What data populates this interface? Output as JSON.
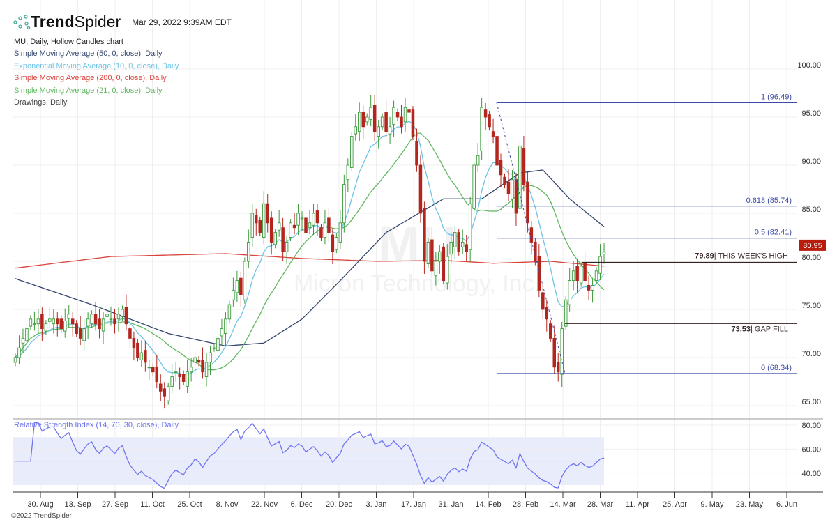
{
  "header": {
    "brand_part1": "Trend",
    "brand_part2": "Spider",
    "timestamp": "Mar 29, 2022 9:39AM EDT"
  },
  "legend": {
    "chart_title": "MU, Daily, Hollow Candles chart",
    "items": [
      {
        "label": "Simple Moving Average (50, 0, close), Daily",
        "color": "#34466e"
      },
      {
        "label": "Exponential Moving Average (10, 0, close), Daily",
        "color": "#6cc3e6"
      },
      {
        "label": "Simple Moving Average (200, 0, close), Daily",
        "color": "#d9453d"
      },
      {
        "label": "Simple Moving Average (21, 0, close), Daily",
        "color": "#5fb85f"
      },
      {
        "label": "Drawings, Daily",
        "color": "#333333"
      }
    ]
  },
  "footer": {
    "copyright": "©2022 TrendSpider"
  },
  "chart_data": {
    "type": "candlestick",
    "symbol": "MU",
    "watermark_symbol": "MU",
    "watermark_name": "Micron Technology, Inc.",
    "last_price": "80.95",
    "last_price_value": 80.95,
    "colors": {
      "up": "#3a9a3a",
      "down": "#b3261e",
      "last_badge": "#b71c0c",
      "fib": "#3b4aa8",
      "drawing": "#3a2222",
      "rsi": "#6f74f0"
    },
    "price_axis": {
      "ticks": [
        100,
        95,
        90,
        85,
        80,
        75,
        70,
        65
      ],
      "labels": [
        "100.00",
        "95.00",
        "90.00",
        "85.00",
        "80.00",
        "75.00",
        "70.00",
        "65.00"
      ]
    },
    "x_axis": {
      "labels": [
        "30. Aug",
        "13. Sep",
        "27. Sep",
        "11. Oct",
        "25. Oct",
        "8. Nov",
        "22. Nov",
        "6. Dec",
        "20. Dec",
        "3. Jan",
        "17. Jan",
        "31. Jan",
        "14. Feb",
        "28. Feb",
        "14. Mar",
        "28. Mar",
        "11. Apr",
        "25. Apr",
        "9. May",
        "23. May",
        "6. Jun"
      ]
    },
    "closes": [
      70,
      71,
      72,
      73,
      74,
      73.5,
      74,
      73,
      73.5,
      74,
      74,
      73.5,
      73,
      73.8,
      74.5,
      73.5,
      72.5,
      72,
      73,
      74,
      74.5,
      73.5,
      73,
      74,
      74.5,
      74,
      73.5,
      74.5,
      75,
      73.5,
      72,
      71,
      70,
      70.5,
      69.5,
      69,
      68.5,
      67.5,
      66.5,
      66,
      67,
      68,
      68.5,
      68,
      67.5,
      68.5,
      69,
      70,
      69.5,
      68.5,
      69.5,
      70.5,
      71,
      72,
      73,
      74,
      75.5,
      77,
      78,
      76.5,
      80,
      82,
      85,
      84,
      83,
      86,
      84,
      82,
      83,
      84,
      81,
      82,
      84,
      83.5,
      85,
      84.5,
      83,
      84,
      85,
      84,
      82.5,
      84,
      83,
      81,
      82.5,
      84,
      88,
      90,
      93,
      94,
      95.5,
      94,
      95,
      96,
      93.5,
      94,
      95,
      93.5,
      94,
      96,
      95,
      94,
      96,
      95.5,
      93,
      90,
      85,
      80,
      82,
      79,
      80,
      81,
      78,
      80.5,
      82,
      83,
      81,
      82,
      81,
      86,
      90,
      91,
      96,
      95,
      94,
      93,
      90,
      89,
      88,
      87,
      88.5,
      85,
      92,
      88,
      84,
      82,
      80,
      77,
      75,
      74,
      72,
      69,
      68.5,
      73,
      76,
      78,
      79,
      78,
      79.5,
      78,
      77,
      77.5,
      79,
      80.5,
      80.95
    ],
    "sma50_anchors": [
      [
        0,
        78.2
      ],
      [
        20,
        75.5
      ],
      [
        40,
        72.5
      ],
      [
        55,
        71.2
      ],
      [
        65,
        71.5
      ],
      [
        75,
        74
      ],
      [
        85,
        78
      ],
      [
        97,
        83
      ],
      [
        112,
        86.5
      ],
      [
        122,
        86.5
      ],
      [
        132,
        89.2
      ],
      [
        138,
        89.5
      ],
      [
        145,
        86.5
      ],
      [
        154,
        83.6
      ]
    ],
    "sma200_anchors": [
      [
        0,
        79.3
      ],
      [
        25,
        80.5
      ],
      [
        55,
        80.8
      ],
      [
        75,
        80.3
      ],
      [
        95,
        80
      ],
      [
        112,
        80.1
      ],
      [
        125,
        79.8
      ],
      [
        140,
        80
      ],
      [
        154,
        79.5
      ]
    ],
    "fib_levels": [
      {
        "ratio": "1",
        "value": 96.49,
        "label": "1 (96.49)"
      },
      {
        "ratio": "0.618",
        "value": 85.74,
        "label": "0.618 (85.74)"
      },
      {
        "ratio": "0.5",
        "value": 82.41,
        "label": "0.5 (82.41)"
      },
      {
        "ratio": "0",
        "value": 68.34,
        "label": "0 (68.34)"
      }
    ],
    "annotations": [
      {
        "value": 79.89,
        "value_label": "79.89",
        "text": "| THIS WEEK'S HIGH"
      },
      {
        "value": 73.53,
        "value_label": "73.53",
        "text": "| GAP FILL"
      }
    ],
    "rsi": {
      "title": "Relative Strength Index (14, 70, 30, close), Daily",
      "upper": 70,
      "lower": 30,
      "ticks": [
        80,
        60,
        40
      ],
      "labels": [
        "80.00",
        "60.00",
        "40.00"
      ]
    }
  }
}
